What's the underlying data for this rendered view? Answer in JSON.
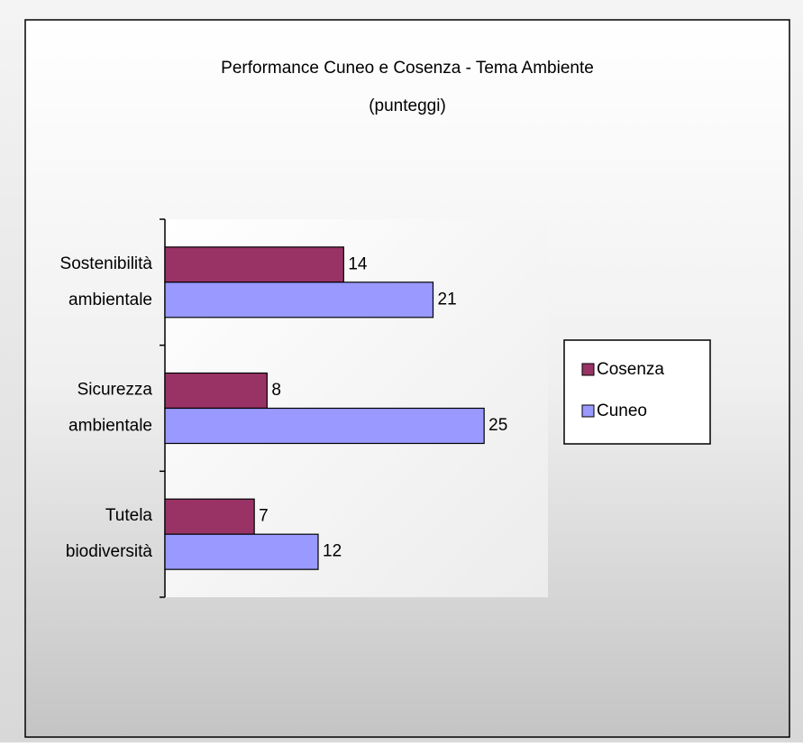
{
  "chart_data": {
    "type": "hbar",
    "title": "Performance Cuneo e Cosenza - Tema Ambiente",
    "subtitle": "(punteggi)",
    "categories": [
      "Sostenibilità ambientale",
      "Sicurezza ambientale",
      "Tutela biodiversità"
    ],
    "series": [
      {
        "name": "Cosenza",
        "color": "#993366",
        "values": [
          14,
          8,
          7
        ]
      },
      {
        "name": "Cuneo",
        "color": "#9999ff",
        "values": [
          21,
          25,
          12
        ]
      }
    ],
    "xlim": [
      0,
      30
    ],
    "legend": "right"
  }
}
